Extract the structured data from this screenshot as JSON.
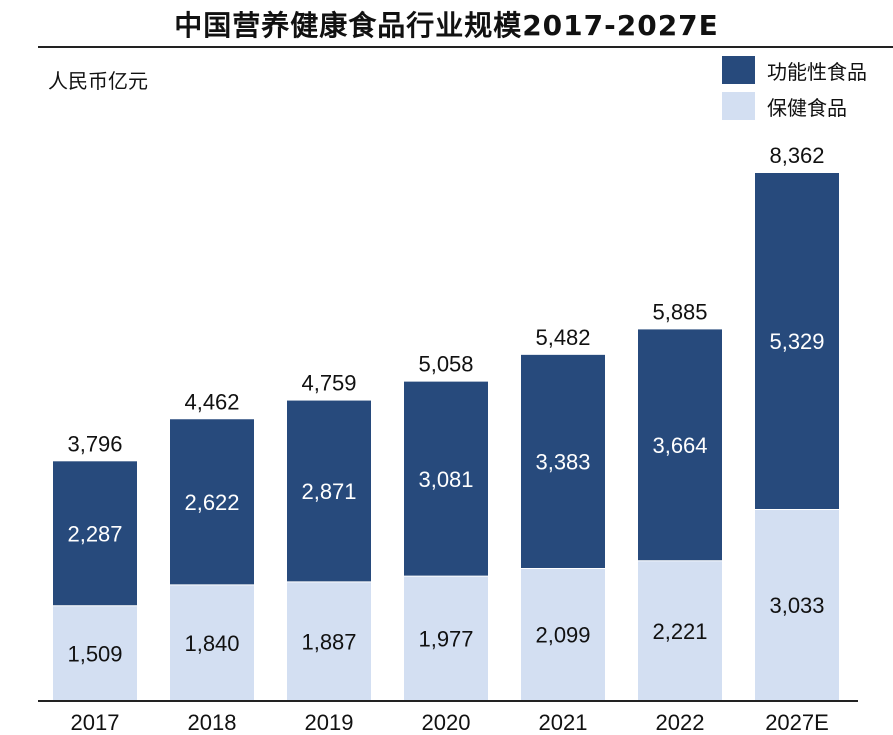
{
  "chart_data": {
    "type": "bar",
    "stacked": true,
    "title": "中国营养健康食品行业规模2017-2027E",
    "ylabel": "人民币亿元",
    "categories": [
      "2017",
      "2018",
      "2019",
      "2020",
      "2021",
      "2022",
      "2027E"
    ],
    "series": [
      {
        "name": "保健食品",
        "color": "#d3dff2",
        "values": [
          1509,
          1840,
          1887,
          1977,
          2099,
          2221,
          3033
        ]
      },
      {
        "name": "功能性食品",
        "color": "#274a7c",
        "values": [
          2287,
          2622,
          2871,
          3081,
          3383,
          3664,
          5329
        ]
      }
    ],
    "totals": [
      3796,
      4462,
      4759,
      5058,
      5482,
      5885,
      8362
    ],
    "value_labels": {
      "bottom": [
        "1,509",
        "1,840",
        "1,887",
        "1,977",
        "2,099",
        "2,221",
        "3,033"
      ],
      "top": [
        "2,287",
        "2,622",
        "2,871",
        "3,081",
        "3,383",
        "3,664",
        "5,329"
      ],
      "total": [
        "3,796",
        "4,462",
        "4,759",
        "5,058",
        "5,482",
        "5,885",
        "8,362"
      ]
    },
    "legend_order": [
      "功能性食品",
      "保健食品"
    ],
    "legend_position": "top-right",
    "ylim": [
      0,
      9400
    ],
    "grid": false
  }
}
